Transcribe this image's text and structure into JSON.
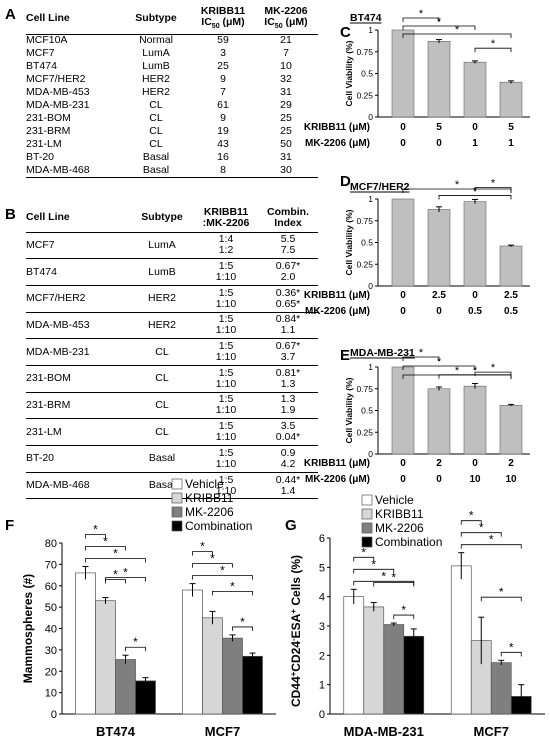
{
  "panels": [
    "A",
    "B",
    "C",
    "D",
    "E",
    "F",
    "G"
  ],
  "tableA": {
    "headers": [
      "Cell Line",
      "Subtype",
      "KRIBB11 IC50 (μM)",
      "MK-2206 IC50 (μM)"
    ],
    "header_lines": [
      [
        "Cell Line"
      ],
      [
        "Subtype"
      ],
      [
        "KRIBB11",
        "IC",
        "50",
        " (μM)"
      ],
      [
        "MK-2206",
        "IC",
        "50",
        " (μM)"
      ]
    ],
    "rows": [
      [
        "MCF10A",
        "Normal",
        "59",
        "21"
      ],
      [
        "MCF7",
        "LumA",
        "3",
        "7"
      ],
      [
        "BT474",
        "LumB",
        "25",
        "10"
      ],
      [
        "MCF7/HER2",
        "HER2",
        "9",
        "32"
      ],
      [
        "MDA-MB-453",
        "HER2",
        "7",
        "31"
      ],
      [
        "MDA-MB-231",
        "CL",
        "61",
        "29"
      ],
      [
        "231-BOM",
        "CL",
        "9",
        "25"
      ],
      [
        "231-BRM",
        "CL",
        "19",
        "25"
      ],
      [
        "231-LM",
        "CL",
        "43",
        "50"
      ],
      [
        "BT-20",
        "Basal",
        "16",
        "31"
      ],
      [
        "MDA-MB-468",
        "Basal",
        "8",
        "30"
      ]
    ]
  },
  "tableB": {
    "headers": [
      "Cell Line",
      "Subtype",
      "KRIBB11 :MK-2206",
      "Combin. Index"
    ],
    "header_lines": [
      [
        "Cell Line"
      ],
      [
        "Subtype"
      ],
      [
        "KRIBB11",
        ":MK-2206"
      ],
      [
        "Combin.",
        "Index"
      ]
    ],
    "rows": [
      [
        "MCF7",
        "LumA",
        [
          "1:4",
          "1:2"
        ],
        [
          "5.5",
          "7.5"
        ]
      ],
      [
        "BT474",
        "LumB",
        [
          "1:5",
          "1:10"
        ],
        [
          "0.67*",
          "2.0"
        ]
      ],
      [
        "MCF7/HER2",
        "HER2",
        [
          "1:5",
          "1:10"
        ],
        [
          "0.36*",
          "0.65*"
        ]
      ],
      [
        "MDA-MB-453",
        "HER2",
        [
          "1:5",
          "1:10"
        ],
        [
          "0.84*",
          "1.1"
        ]
      ],
      [
        "MDA-MB-231",
        "CL",
        [
          "1:5",
          "1:10"
        ],
        [
          "0.67*",
          "3.7"
        ]
      ],
      [
        "231-BOM",
        "CL",
        [
          "1:5",
          "1:10"
        ],
        [
          "0.81*",
          "1.3"
        ]
      ],
      [
        "231-BRM",
        "CL",
        [
          "1:5",
          "1:10"
        ],
        [
          "1.3",
          "1.9"
        ]
      ],
      [
        "231-LM",
        "CL",
        [
          "1:5",
          "1:10"
        ],
        [
          "3.5",
          "0.04*"
        ]
      ],
      [
        "BT-20",
        "Basal",
        [
          "1:5",
          "1:10"
        ],
        [
          "0.9",
          "4.2"
        ]
      ],
      [
        "MDA-MB-468",
        "Basal",
        [
          "1:5",
          "1:10"
        ],
        [
          "0.44*",
          "1.4"
        ]
      ]
    ]
  },
  "chart_data": [
    {
      "panel": "C",
      "type": "bar",
      "title": "BT474",
      "ylabel": "Cell Viability (%)",
      "ylim": [
        0,
        1
      ],
      "yticks": [
        "0",
        "0.25",
        "0.5",
        "0.75",
        "1"
      ],
      "row_labels": [
        "KRIBB11 (μM)",
        "MK-2206 (μM)"
      ],
      "conditions": [
        [
          "0",
          "0"
        ],
        [
          "5",
          "0"
        ],
        [
          "0",
          "1"
        ],
        [
          "5",
          "1"
        ]
      ],
      "values": [
        1.0,
        0.87,
        0.63,
        0.4
      ],
      "errors": [
        0,
        0.02,
        0.015,
        0.015
      ],
      "significance": [
        [
          0,
          1
        ],
        [
          0,
          2
        ],
        [
          0,
          3
        ],
        [
          2,
          3
        ]
      ],
      "sig_symbol": "*"
    },
    {
      "panel": "D",
      "type": "bar",
      "title": "MCF7/HER2",
      "ylabel": "Cell Viability (%)",
      "ylim": [
        0,
        1
      ],
      "yticks": [
        "0",
        "0.25",
        "0.5",
        "0.75",
        "1"
      ],
      "row_labels": [
        "KRIBB11 (μM)",
        "MK-2206 (μM)"
      ],
      "conditions": [
        [
          "0",
          "0"
        ],
        [
          "2.5",
          "0"
        ],
        [
          "0",
          "0.5"
        ],
        [
          "2.5",
          "0.5"
        ]
      ],
      "values": [
        1.0,
        0.88,
        0.97,
        0.46
      ],
      "errors": [
        0,
        0.03,
        0.025,
        0.01
      ],
      "significance": [
        [
          0,
          3
        ],
        [
          1,
          3
        ],
        [
          2,
          3
        ]
      ],
      "sig_symbol": "*"
    },
    {
      "panel": "E",
      "type": "bar",
      "title": "MDA-MB-231",
      "ylabel": "Cell Viability (%)",
      "ylim": [
        0,
        1
      ],
      "yticks": [
        "0",
        "0.25",
        "0.5",
        "0.75",
        "1"
      ],
      "row_labels": [
        "KRIBB11 (μM)",
        "MK-2206 (μM)"
      ],
      "conditions": [
        [
          "0",
          "0"
        ],
        [
          "2",
          "0"
        ],
        [
          "0",
          "10"
        ],
        [
          "2",
          "10"
        ]
      ],
      "values": [
        1.0,
        0.75,
        0.78,
        0.56
      ],
      "errors": [
        0,
        0.02,
        0.03,
        0.01
      ],
      "significance": [
        [
          0,
          1
        ],
        [
          0,
          2
        ],
        [
          0,
          3
        ],
        [
          1,
          3
        ],
        [
          2,
          3
        ]
      ],
      "sig_symbol": "*"
    },
    {
      "panel": "F",
      "type": "bar",
      "ylabel": "Mammospheres (#)",
      "ylim": [
        0,
        80
      ],
      "yticks": [
        "0",
        "10",
        "20",
        "30",
        "40",
        "50",
        "60",
        "70",
        "80"
      ],
      "categories": [
        "BT474",
        "MCF7"
      ],
      "series": [
        {
          "name": "Vehicle",
          "values": [
            66,
            58
          ],
          "errors": [
            3,
            3
          ]
        },
        {
          "name": "KRIBB11",
          "values": [
            53,
            45
          ],
          "errors": [
            1.5,
            3
          ]
        },
        {
          "name": "MK-2206",
          "values": [
            25.5,
            35.5
          ],
          "errors": [
            2,
            1.5
          ]
        },
        {
          "name": "Combination",
          "values": [
            15.5,
            27
          ],
          "errors": [
            1.5,
            1.5
          ]
        }
      ],
      "significance": [
        [
          [
            0,
            1
          ],
          [
            0,
            2
          ],
          [
            0,
            3
          ],
          [
            1,
            2
          ],
          [
            1,
            3
          ],
          [
            2,
            3
          ]
        ],
        [
          [
            0,
            1
          ],
          [
            0,
            2
          ],
          [
            0,
            3
          ],
          [
            1,
            3
          ],
          [
            2,
            3
          ]
        ]
      ],
      "sig_symbol": "*"
    },
    {
      "panel": "G",
      "type": "bar",
      "ylabel": "CD44+CD24-ESA+ Cells (%)",
      "ylabel_parts": [
        "CD44",
        "+",
        "CD24",
        "-",
        "ESA",
        "+",
        " Cells (%)"
      ],
      "ylim": [
        0,
        6
      ],
      "yticks": [
        "0",
        "1",
        "2",
        "3",
        "4",
        "5",
        "6"
      ],
      "categories": [
        "MDA-MB-231",
        "MCF7"
      ],
      "series": [
        {
          "name": "Vehicle",
          "values": [
            4.0,
            5.05
          ],
          "errors": [
            0.25,
            0.45
          ]
        },
        {
          "name": "KRIBB11",
          "values": [
            3.65,
            2.5
          ],
          "errors": [
            0.15,
            0.8
          ]
        },
        {
          "name": "MK-2206",
          "values": [
            3.05,
            1.75
          ],
          "errors": [
            0.05,
            0.08
          ]
        },
        {
          "name": "Combination",
          "values": [
            2.65,
            0.6
          ],
          "errors": [
            0.25,
            0.4
          ]
        }
      ],
      "significance": [
        [
          [
            0,
            1
          ],
          [
            0,
            2
          ],
          [
            0,
            3
          ],
          [
            1,
            3
          ],
          [
            2,
            3
          ]
        ],
        [
          [
            0,
            1
          ],
          [
            0,
            2
          ],
          [
            0,
            3
          ],
          [
            1,
            3
          ],
          [
            2,
            3
          ]
        ]
      ],
      "sig_symbol": "*"
    }
  ],
  "colors": {
    "vehicle": "#ffffff",
    "kribb11": "#d6d6d6",
    "mk2206": "#7f7f7f",
    "combination": "#000000",
    "bar": "#bfbfbf"
  }
}
